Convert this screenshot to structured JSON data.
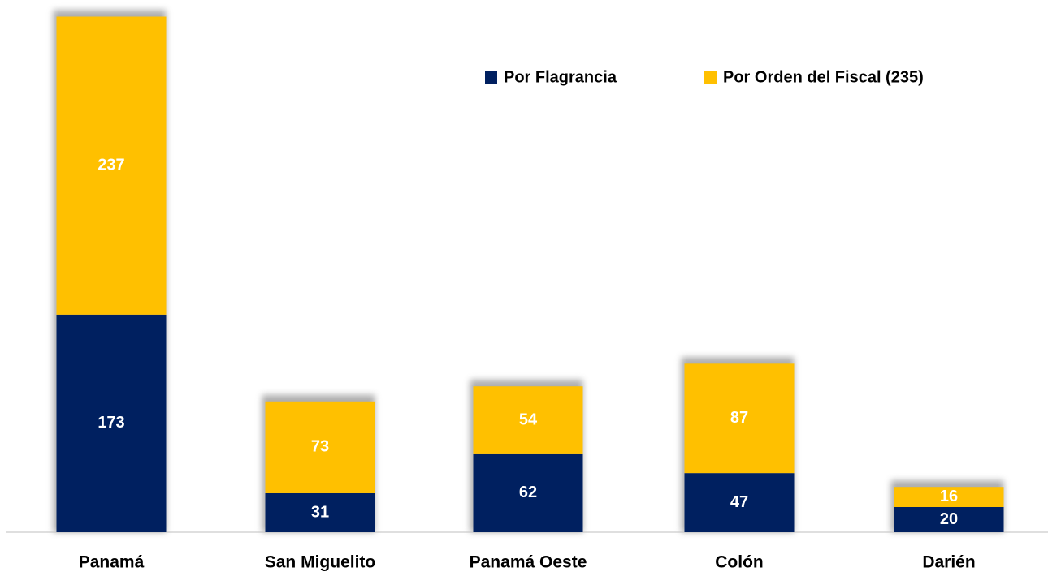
{
  "chart_data": {
    "type": "stacked_bar",
    "categories": [
      "Panamá",
      "San Miguelito",
      "Panamá Oeste",
      "Colón",
      "Darién"
    ],
    "series": [
      {
        "name": "Por Flagrancia",
        "color": "#002060",
        "values": [
          173,
          31,
          62,
          47,
          20
        ]
      },
      {
        "name": "Por Orden del Fiscal (235)",
        "color": "#FFC000",
        "values": [
          237,
          73,
          54,
          87,
          16
        ]
      }
    ],
    "ylim": [
      0,
      420
    ]
  }
}
